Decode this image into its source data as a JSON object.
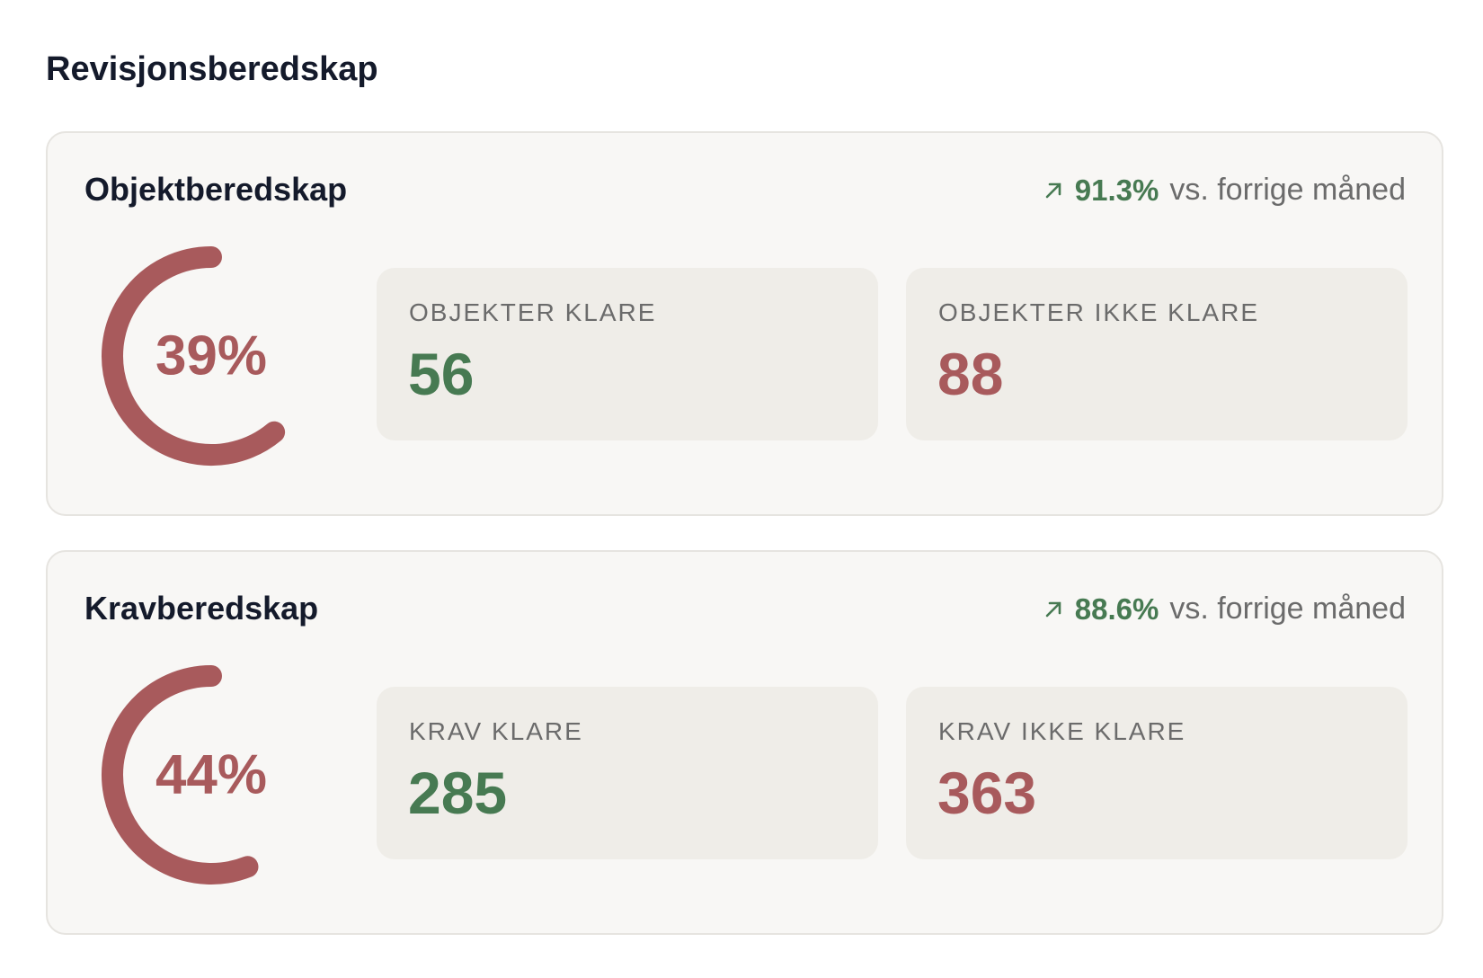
{
  "header": {
    "title": "Revisjonsberedskap"
  },
  "cards": [
    {
      "title": "Objektberedskap",
      "trend": {
        "value": "91.3%",
        "text": "vs. forrige måned"
      },
      "gauge": {
        "value": 39,
        "label": "39%"
      },
      "stats": [
        {
          "label": "OBJEKTER KLARE",
          "value": 56
        },
        {
          "label": "OBJEKTER IKKE KLARE",
          "value": 88
        }
      ]
    },
    {
      "title": "Kravberedskap",
      "trend": {
        "value": "88.6%",
        "text": "vs. forrige måned"
      },
      "gauge": {
        "value": 44,
        "label": "44%"
      },
      "stats": [
        {
          "label": "KRAV KLARE",
          "value": 285
        },
        {
          "label": "KRAV IKKE KLARE",
          "value": 363
        }
      ]
    }
  ]
}
